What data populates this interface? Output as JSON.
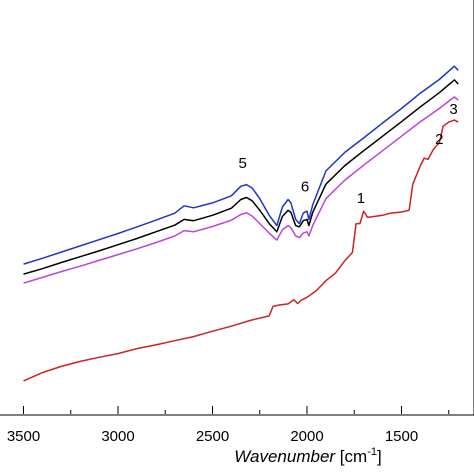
{
  "chart_data": {
    "type": "line",
    "x_reversed": true,
    "xlim": [
      3500,
      1200
    ],
    "ylim": [
      0,
      1
    ],
    "grid": false,
    "xlabel": {
      "italic": "Wavenumber",
      "unit_prefix": " [cm",
      "unit_sup": "-1",
      "unit_suffix": "]"
    },
    "x_ticks": [
      3500,
      3000,
      2500,
      2000,
      1500
    ],
    "x_tick_labels": [
      "3500",
      "3000",
      "2500",
      "2000",
      "1500"
    ],
    "series": [
      {
        "color": "#2233cc",
        "points": [
          [
            3500,
            0.362
          ],
          [
            3400,
            0.376
          ],
          [
            3300,
            0.391
          ],
          [
            3200,
            0.406
          ],
          [
            3100,
            0.421
          ],
          [
            3000,
            0.436
          ],
          [
            2900,
            0.452
          ],
          [
            2800,
            0.468
          ],
          [
            2700,
            0.485
          ],
          [
            2650,
            0.503
          ],
          [
            2600,
            0.498
          ],
          [
            2500,
            0.51
          ],
          [
            2400,
            0.527
          ],
          [
            2350,
            0.55
          ],
          [
            2320,
            0.554
          ],
          [
            2290,
            0.546
          ],
          [
            2250,
            0.52
          ],
          [
            2200,
            0.48
          ],
          [
            2160,
            0.455
          ],
          [
            2130,
            0.5
          ],
          [
            2100,
            0.518
          ],
          [
            2085,
            0.51
          ],
          [
            2060,
            0.47
          ],
          [
            2040,
            0.46
          ],
          [
            2020,
            0.485
          ],
          [
            2000,
            0.49
          ],
          [
            1990,
            0.47
          ],
          [
            1970,
            0.505
          ],
          [
            1900,
            0.587
          ],
          [
            1800,
            0.632
          ],
          [
            1700,
            0.667
          ],
          [
            1600,
            0.703
          ],
          [
            1500,
            0.738
          ],
          [
            1400,
            0.775
          ],
          [
            1300,
            0.808
          ],
          [
            1220,
            0.84
          ],
          [
            1200,
            0.83
          ]
        ]
      },
      {
        "color": "#000000",
        "points": [
          [
            3500,
            0.338
          ],
          [
            3400,
            0.351
          ],
          [
            3300,
            0.366
          ],
          [
            3200,
            0.38
          ],
          [
            3100,
            0.394
          ],
          [
            3000,
            0.409
          ],
          [
            2900,
            0.424
          ],
          [
            2800,
            0.44
          ],
          [
            2700,
            0.456
          ],
          [
            2650,
            0.47
          ],
          [
            2600,
            0.467
          ],
          [
            2500,
            0.48
          ],
          [
            2400,
            0.497
          ],
          [
            2350,
            0.518
          ],
          [
            2320,
            0.523
          ],
          [
            2290,
            0.515
          ],
          [
            2250,
            0.492
          ],
          [
            2200,
            0.46
          ],
          [
            2160,
            0.44
          ],
          [
            2130,
            0.477
          ],
          [
            2100,
            0.492
          ],
          [
            2085,
            0.487
          ],
          [
            2060,
            0.455
          ],
          [
            2040,
            0.452
          ],
          [
            2020,
            0.467
          ],
          [
            2000,
            0.47
          ],
          [
            1990,
            0.455
          ],
          [
            1970,
            0.487
          ],
          [
            1900,
            0.555
          ],
          [
            1800,
            0.6
          ],
          [
            1700,
            0.636
          ],
          [
            1600,
            0.671
          ],
          [
            1500,
            0.706
          ],
          [
            1400,
            0.742
          ],
          [
            1300,
            0.776
          ],
          [
            1220,
            0.807
          ],
          [
            1200,
            0.797
          ]
        ]
      },
      {
        "color": "#bb44dd",
        "points": [
          [
            3500,
            0.316
          ],
          [
            3400,
            0.33
          ],
          [
            3300,
            0.344
          ],
          [
            3200,
            0.357
          ],
          [
            3100,
            0.371
          ],
          [
            3000,
            0.385
          ],
          [
            2900,
            0.399
          ],
          [
            2800,
            0.414
          ],
          [
            2700,
            0.43
          ],
          [
            2650,
            0.443
          ],
          [
            2600,
            0.44
          ],
          [
            2500,
            0.453
          ],
          [
            2400,
            0.468
          ],
          [
            2350,
            0.482
          ],
          [
            2320,
            0.486
          ],
          [
            2290,
            0.478
          ],
          [
            2250,
            0.46
          ],
          [
            2200,
            0.437
          ],
          [
            2160,
            0.42
          ],
          [
            2130,
            0.445
          ],
          [
            2100,
            0.455
          ],
          [
            2085,
            0.45
          ],
          [
            2060,
            0.43
          ],
          [
            2040,
            0.426
          ],
          [
            2020,
            0.437
          ],
          [
            2000,
            0.44
          ],
          [
            1990,
            0.43
          ],
          [
            1970,
            0.455
          ],
          [
            1900,
            0.52
          ],
          [
            1800,
            0.565
          ],
          [
            1700,
            0.601
          ],
          [
            1600,
            0.636
          ],
          [
            1500,
            0.671
          ],
          [
            1400,
            0.706
          ],
          [
            1300,
            0.738
          ],
          [
            1220,
            0.766
          ],
          [
            1200,
            0.758
          ]
        ]
      },
      {
        "color": "#cc2222",
        "points": [
          [
            3500,
            0.08
          ],
          [
            3400,
            0.1
          ],
          [
            3300,
            0.115
          ],
          [
            3200,
            0.127
          ],
          [
            3100,
            0.137
          ],
          [
            3000,
            0.146
          ],
          [
            2900,
            0.158
          ],
          [
            2800,
            0.167
          ],
          [
            2700,
            0.177
          ],
          [
            2600,
            0.187
          ],
          [
            2500,
            0.2
          ],
          [
            2400,
            0.212
          ],
          [
            2300,
            0.226
          ],
          [
            2200,
            0.237
          ],
          [
            2180,
            0.26
          ],
          [
            2150,
            0.263
          ],
          [
            2100,
            0.266
          ],
          [
            2070,
            0.276
          ],
          [
            2050,
            0.267
          ],
          [
            2030,
            0.275
          ],
          [
            2000,
            0.282
          ],
          [
            1950,
            0.298
          ],
          [
            1900,
            0.322
          ],
          [
            1850,
            0.34
          ],
          [
            1800,
            0.37
          ],
          [
            1760,
            0.39
          ],
          [
            1740,
            0.46
          ],
          [
            1720,
            0.46
          ],
          [
            1700,
            0.49
          ],
          [
            1680,
            0.475
          ],
          [
            1600,
            0.48
          ],
          [
            1560,
            0.485
          ],
          [
            1500,
            0.488
          ],
          [
            1460,
            0.492
          ],
          [
            1440,
            0.555
          ],
          [
            1400,
            0.6
          ],
          [
            1380,
            0.618
          ],
          [
            1360,
            0.615
          ],
          [
            1330,
            0.64
          ],
          [
            1300,
            0.655
          ],
          [
            1280,
            0.695
          ],
          [
            1250,
            0.705
          ],
          [
            1220,
            0.71
          ],
          [
            1200,
            0.705
          ]
        ]
      }
    ],
    "annotations": [
      {
        "text": "5",
        "x": 2340,
        "y": 0.594
      },
      {
        "text": "6",
        "x": 2010,
        "y": 0.537
      },
      {
        "text": "1",
        "x": 1715,
        "y": 0.51
      },
      {
        "text": "2",
        "x": 1300,
        "y": 0.652
      },
      {
        "text": "3",
        "x": 1225,
        "y": 0.725
      }
    ]
  }
}
